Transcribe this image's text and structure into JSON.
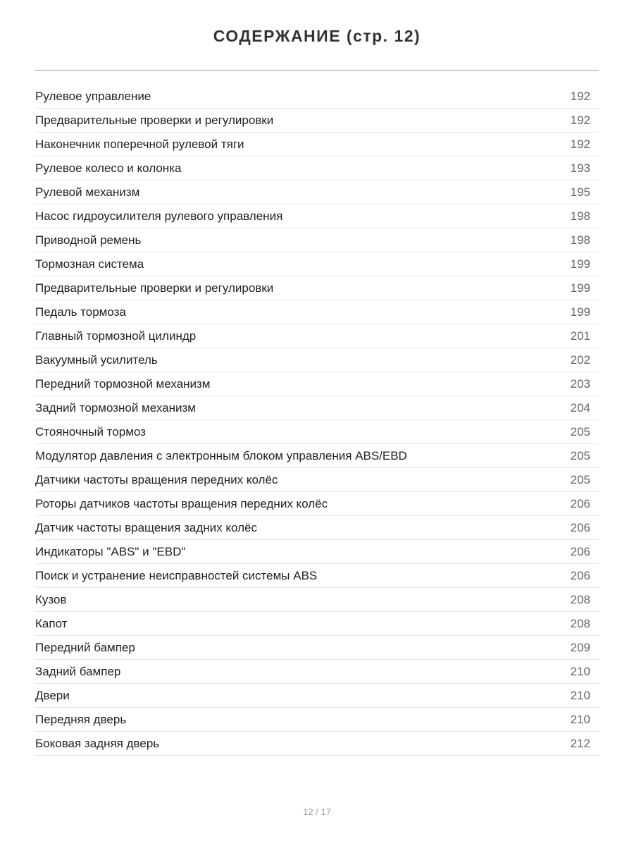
{
  "title": "СОДЕРЖАНИЕ (стр. 12)",
  "entries": [
    {
      "label": "Рулевое управление",
      "page": "192"
    },
    {
      "label": "Предварительные проверки и регулировки",
      "page": "192"
    },
    {
      "label": "Наконечник поперечной рулевой тяги",
      "page": "192"
    },
    {
      "label": "Рулевое колесо и колонка",
      "page": "193"
    },
    {
      "label": "Рулевой механизм",
      "page": "195"
    },
    {
      "label": "Насос гидроусилителя рулевого управления",
      "page": "198"
    },
    {
      "label": "Приводной ремень",
      "page": "198"
    },
    {
      "label": "Тормозная система",
      "page": "199"
    },
    {
      "label": "Предварительные проверки и регулировки",
      "page": "199"
    },
    {
      "label": "Педаль тормоза",
      "page": "199"
    },
    {
      "label": "Главный тормозной цилиндр",
      "page": "201"
    },
    {
      "label": "Вакуумный усилитель",
      "page": "202"
    },
    {
      "label": "Передний тормозной механизм",
      "page": "203"
    },
    {
      "label": "Задний тормозной механизм",
      "page": "204"
    },
    {
      "label": "Стояночный тормоз",
      "page": "205"
    },
    {
      "label": "Модулятор давления с электронным блоком управления ABS/EBD",
      "page": "205"
    },
    {
      "label": "Датчики частоты вращения передних колёс",
      "page": "205"
    },
    {
      "label": "Роторы датчиков частоты вращения передних колёс",
      "page": "206"
    },
    {
      "label": "Датчик частоты вращения задних колёс",
      "page": "206"
    },
    {
      "label": "Индикаторы \"ABS\" и \"EBD\"",
      "page": "206"
    },
    {
      "label": "Поиск и устранение неисправностей системы ABS",
      "page": "206"
    },
    {
      "label": "Кузов",
      "page": "208"
    },
    {
      "label": "Капот",
      "page": "208"
    },
    {
      "label": "Передний бампер",
      "page": "209"
    },
    {
      "label": "Задний бампер",
      "page": "210"
    },
    {
      "label": "Двери",
      "page": "210"
    },
    {
      "label": "Передняя дверь",
      "page": "210"
    },
    {
      "label": "Боковая задняя дверь",
      "page": "212"
    }
  ],
  "footer": {
    "pagination": "12 / 17"
  }
}
